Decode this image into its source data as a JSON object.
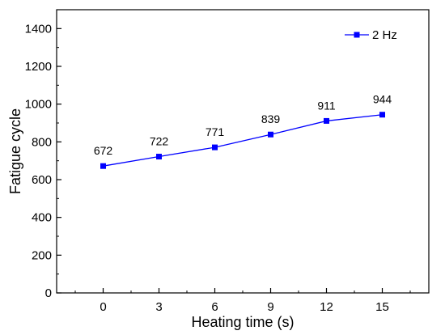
{
  "chart_data": {
    "type": "line",
    "x": [
      0,
      3,
      6,
      9,
      12,
      15
    ],
    "series": [
      {
        "name": "2 Hz",
        "values": [
          672,
          722,
          771,
          839,
          911,
          944
        ],
        "color": "#0000ff",
        "marker": "square"
      }
    ],
    "data_labels": [
      "672",
      "722",
      "771",
      "839",
      "911",
      "944"
    ],
    "title": "",
    "xlabel": "Heating time (s)",
    "ylabel": "Fatigue cycle",
    "xlim": [
      -2.5,
      17.5
    ],
    "ylim": [
      0,
      1500
    ],
    "xticks": [
      0,
      3,
      6,
      9,
      12,
      15
    ],
    "xtick_labels": [
      "0",
      "3",
      "6",
      "9",
      "12",
      "15"
    ],
    "yticks": [
      0,
      200,
      400,
      600,
      800,
      1000,
      1200,
      1400
    ],
    "ytick_labels": [
      "0",
      "200",
      "400",
      "600",
      "800",
      "1000",
      "1200",
      "1400"
    ],
    "grid": false,
    "legend_position": "top-right",
    "axis_color": "#000000"
  }
}
